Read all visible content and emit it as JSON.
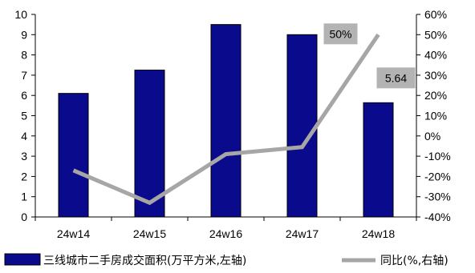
{
  "chart_data": {
    "type": "bar",
    "categories": [
      "24w14",
      "24w15",
      "24w16",
      "24w17",
      "24w18"
    ],
    "series": [
      {
        "name": "三线城市二手房成交面积(万平方米,左轴)",
        "type": "bar",
        "axis": "left",
        "color": "#0a0a8c",
        "values": [
          6.1,
          7.25,
          9.5,
          9.0,
          5.64
        ]
      },
      {
        "name": "同比(%,右轴)",
        "type": "line",
        "axis": "right",
        "color": "#a6a6a6",
        "values": [
          -17,
          -33,
          -9,
          -5.5,
          50
        ]
      }
    ],
    "y_left": {
      "min": 0,
      "max": 10,
      "step": 1,
      "ticks": [
        "0",
        "1",
        "2",
        "3",
        "4",
        "5",
        "6",
        "7",
        "8",
        "9",
        "10"
      ]
    },
    "y_right": {
      "min": -40,
      "max": 60,
      "step": 10,
      "ticks": [
        "-40%",
        "-30%",
        "-20%",
        "-10%",
        "0%",
        "10%",
        "20%",
        "30%",
        "40%",
        "50%",
        "60%"
      ]
    },
    "data_labels": [
      {
        "series": 1,
        "index": 4,
        "text": "50%"
      },
      {
        "series": 0,
        "index": 4,
        "text": "5.64"
      }
    ],
    "label_box_color": "#b3b3b3",
    "legend": {
      "position": "bottom",
      "items": [
        "三线城市二手房成交面积(万平方米,左轴)",
        "同比(%,右轴)"
      ]
    },
    "grid": false
  }
}
